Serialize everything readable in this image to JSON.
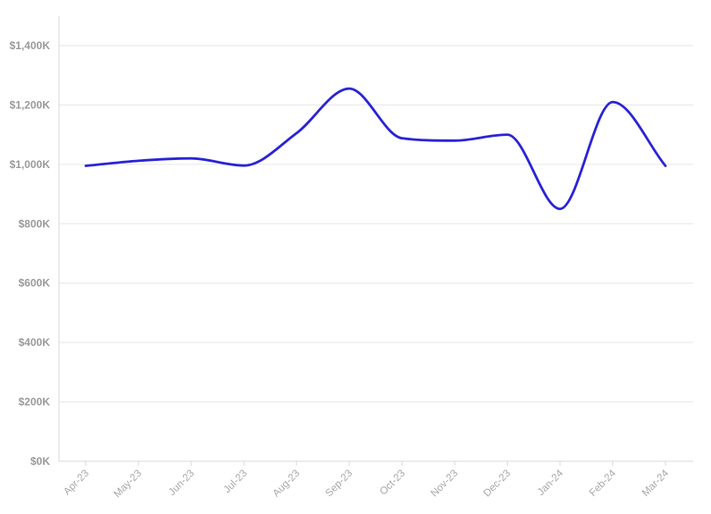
{
  "chart_data": {
    "type": "line",
    "title": "",
    "xlabel": "",
    "ylabel": "",
    "categories": [
      "Apr-23",
      "May-23",
      "Jun-23",
      "Jul-23",
      "Aug-23",
      "Sep-23",
      "Oct-23",
      "Nov-23",
      "Dec-23",
      "Jan-24",
      "Feb-24",
      "Mar-24"
    ],
    "series": [
      {
        "values": [
          995000,
          1012000,
          1020000,
          996000,
          1105000,
          1255000,
          1088000,
          1080000,
          1100000,
          850000,
          1210000,
          995000
        ],
        "color": "#2b24d6"
      }
    ],
    "ylim": [
      0,
      1400000
    ],
    "y_ticks": [
      0,
      200000,
      400000,
      600000,
      800000,
      1000000,
      1200000,
      1400000
    ],
    "y_tick_labels": [
      "$0K",
      "$200K",
      "$400K",
      "$600K",
      "$800K",
      "$1,000K",
      "$1,200K",
      "$1,400K"
    ],
    "grid": true,
    "smooth": true,
    "legend": "none"
  }
}
